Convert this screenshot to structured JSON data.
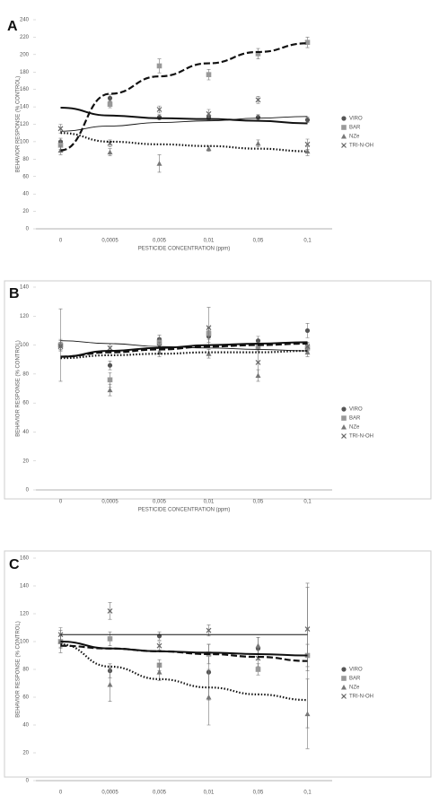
{
  "chart_data": [
    {
      "type": "scatter-trend",
      "panel": "A",
      "x_label": "PESTICIDE CONCENTRATION (ppm)",
      "y_label": "BEHAVIOR RESPONSE (% CONTROL)",
      "categories": [
        "0",
        "0,0005",
        "0,005",
        "0,01",
        "0,05",
        "0,1"
      ],
      "ylim": [
        0,
        240
      ],
      "yticks": [
        0,
        20,
        40,
        60,
        80,
        100,
        120,
        140,
        160,
        180,
        200,
        220,
        240
      ],
      "series": [
        {
          "name": "VIRO",
          "color": "#555555",
          "marker": "circle",
          "dash": "solid",
          "values": [
            100,
            150,
            128,
            128,
            128,
            125
          ],
          "errors": [
            4,
            4,
            3,
            3,
            3,
            3
          ],
          "trend": [
            139,
            130,
            127,
            126,
            124,
            121
          ]
        },
        {
          "name": "BAR",
          "color": "#999999",
          "marker": "square",
          "dash": "dashed",
          "values": [
            96,
            143,
            187,
            177,
            201,
            214
          ],
          "errors": [
            5,
            4,
            8,
            6,
            6,
            6
          ],
          "trend": [
            90,
            155,
            175,
            190,
            203,
            213
          ]
        },
        {
          "name": "NZe",
          "color": "#777777",
          "marker": "triangle",
          "dash": "dotted",
          "values": [
            90,
            88,
            75,
            92,
            98,
            89
          ],
          "errors": [
            5,
            4,
            10,
            3,
            4,
            5
          ],
          "trend": [
            110,
            100,
            97,
            95,
            92,
            89
          ]
        },
        {
          "name": "TRI-N-OH",
          "color": "#666666",
          "marker": "cross",
          "dash": "thin",
          "values": [
            115,
            98,
            137,
            132,
            148,
            97
          ],
          "errors": [
            5,
            4,
            4,
            5,
            4,
            6
          ],
          "trend": [
            112,
            118,
            122,
            124,
            127,
            129
          ]
        }
      ]
    },
    {
      "type": "scatter-trend",
      "panel": "B",
      "x_label": "PESTICIDE CONCENTRATION (ppm)",
      "y_label": "BEHAVIOR RESPONSE (% CONTROL)",
      "categories": [
        "0",
        "0,0005",
        "0,005",
        "0,01",
        "0,05",
        "0,1"
      ],
      "ylim": [
        0,
        140
      ],
      "yticks": [
        0,
        20,
        40,
        60,
        80,
        100,
        120,
        140
      ],
      "series": [
        {
          "name": "VIRO",
          "color": "#555555",
          "marker": "circle",
          "dash": "solid",
          "values": [
            100,
            86,
            104,
            106,
            103,
            110
          ],
          "errors": [
            25,
            3,
            3,
            4,
            3,
            5
          ],
          "trend": [
            92,
            96,
            98,
            100,
            101,
            102
          ]
        },
        {
          "name": "BAR",
          "color": "#999999",
          "marker": "square",
          "dash": "dashed",
          "values": [
            100,
            76,
            102,
            108,
            99,
            98
          ],
          "errors": [
            4,
            5,
            3,
            4,
            3,
            3
          ],
          "trend": [
            92,
            95,
            97,
            99,
            100,
            101
          ]
        },
        {
          "name": "NZe",
          "color": "#777777",
          "marker": "triangle",
          "dash": "dotted",
          "values": [
            100,
            69,
            95,
            94,
            79,
            95
          ],
          "errors": [
            3,
            4,
            3,
            3,
            4,
            3
          ],
          "trend": [
            91,
            93,
            94,
            95,
            95,
            96
          ]
        },
        {
          "name": "TRI-N-OH",
          "color": "#666666",
          "marker": "cross",
          "dash": "thin",
          "values": [
            99,
            98,
            99,
            112,
            88,
            99
          ],
          "errors": [
            3,
            3,
            3,
            14,
            10,
            3
          ],
          "trend": [
            103,
            101,
            99,
            98,
            97,
            96
          ]
        }
      ]
    },
    {
      "type": "scatter-trend",
      "panel": "C",
      "x_label": "PESTICIDE CONCENTRATION (ppm)",
      "y_label": "BEHAVIOR RESPONSE (% CONTROL)",
      "categories": [
        "0",
        "0,0005",
        "0,005",
        "0,01",
        "0,05",
        "0,1"
      ],
      "ylim": [
        0,
        160
      ],
      "yticks": [
        0,
        20,
        40,
        60,
        80,
        100,
        120,
        140,
        160
      ],
      "series": [
        {
          "name": "VIRO",
          "color": "#555555",
          "marker": "circle",
          "dash": "solid",
          "values": [
            100,
            79,
            104,
            78,
            95,
            90
          ],
          "errors": [
            5,
            5,
            3,
            20,
            8,
            52
          ],
          "trend": [
            100,
            95,
            93,
            92,
            91,
            90
          ]
        },
        {
          "name": "BAR",
          "color": "#999999",
          "marker": "square",
          "dash": "dashed",
          "values": [
            100,
            102,
            83,
            91,
            80,
            90
          ],
          "errors": [
            8,
            5,
            4,
            7,
            4,
            8
          ],
          "trend": [
            97,
            95,
            93,
            91,
            89,
            86
          ]
        },
        {
          "name": "NZe",
          "color": "#777777",
          "marker": "triangle",
          "dash": "dotted",
          "values": [
            100,
            69,
            78,
            60,
            97,
            48
          ],
          "errors": [
            4,
            12,
            6,
            20,
            6,
            25
          ],
          "trend": [
            98,
            82,
            73,
            67,
            62,
            58
          ]
        },
        {
          "name": "TRI-N-OH",
          "color": "#666666",
          "marker": "cross",
          "dash": "thin",
          "values": [
            105,
            122,
            97,
            108,
            88,
            109
          ],
          "errors": [
            5,
            6,
            3,
            4,
            6,
            30
          ],
          "trend": [
            105,
            105,
            105,
            105,
            105,
            105
          ]
        }
      ]
    }
  ]
}
